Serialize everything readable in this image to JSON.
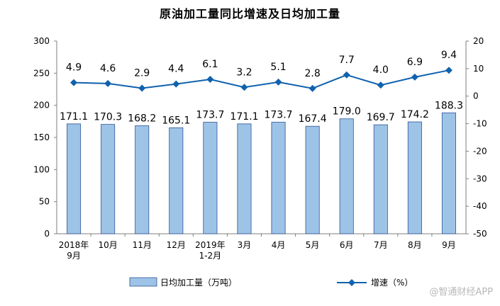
{
  "chart_data": {
    "type": "bar",
    "title": "原油加工量同比增速及日均加工量",
    "categories": [
      [
        "2018年",
        "9月"
      ],
      [
        "10月"
      ],
      [
        "11月"
      ],
      [
        "12月"
      ],
      [
        "2019年",
        "1-2月"
      ],
      [
        "3月"
      ],
      [
        "4月"
      ],
      [
        "5月"
      ],
      [
        "6月"
      ],
      [
        "7月"
      ],
      [
        "8月"
      ],
      [
        "9月"
      ]
    ],
    "series": [
      {
        "name": "日均加工量（万吨）",
        "kind": "bar",
        "axis": "left",
        "color": "#9DC3E6",
        "values": [
          171.1,
          170.3,
          168.2,
          165.1,
          173.7,
          171.1,
          173.7,
          167.4,
          179.0,
          169.7,
          174.2,
          188.3
        ],
        "labels": [
          "171.1",
          "170.3",
          "168.2",
          "165.1",
          "173.7",
          "171.1",
          "173.7",
          "167.4",
          "179.0",
          "169.7",
          "174.2",
          "188.3"
        ]
      },
      {
        "name": "增速（%）",
        "kind": "line",
        "axis": "right",
        "color": "#0F62AE",
        "values": [
          4.9,
          4.6,
          2.9,
          4.4,
          6.1,
          3.2,
          5.1,
          2.8,
          7.7,
          4.0,
          6.9,
          9.4
        ],
        "labels": [
          "4.9",
          "4.6",
          "2.9",
          "4.4",
          "6.1",
          "3.2",
          "5.1",
          "2.8",
          "7.7",
          "4.0",
          "6.9",
          "9.4"
        ]
      }
    ],
    "y_left": {
      "ylim": [
        0,
        300
      ],
      "ticks": [
        "0",
        "50",
        "100",
        "150",
        "200",
        "250",
        "300"
      ]
    },
    "y_right": {
      "ylim": [
        -50,
        20
      ],
      "ticks": [
        "-50",
        "-40",
        "-30",
        "-20",
        "-10",
        "0",
        "10",
        "20"
      ]
    },
    "grid": false,
    "legend_position": "bottom"
  },
  "watermark": "@智通财经APP"
}
